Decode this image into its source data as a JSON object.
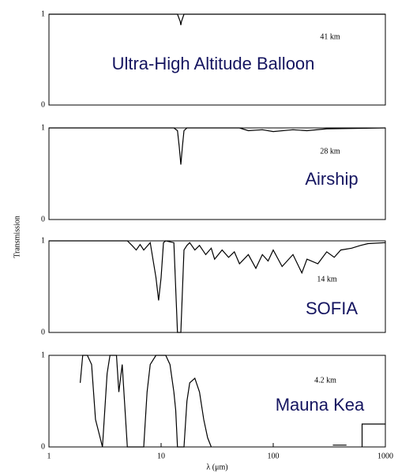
{
  "chart_data": [
    {
      "type": "line",
      "annotation": "41 km",
      "title": "Ultra-High Altitude Balloon",
      "y_label": "Transmission",
      "x": [
        1,
        14,
        14.8,
        15,
        15.2,
        16,
        1000
      ],
      "values": [
        1,
        1,
        0.92,
        0.88,
        0.92,
        1,
        1
      ],
      "color": "#000000",
      "xlim": [
        1,
        1000
      ],
      "ylim": [
        0,
        1
      ],
      "yticks": [
        0,
        1
      ],
      "log_x": true
    },
    {
      "type": "line",
      "annotation": "28 km",
      "title": "Airship",
      "x": [
        1,
        13,
        14,
        14.5,
        15,
        15.5,
        16,
        17,
        50,
        60,
        80,
        100,
        150,
        200,
        300,
        1000
      ],
      "values": [
        1,
        1,
        0.97,
        0.8,
        0.6,
        0.8,
        0.97,
        1,
        1,
        0.97,
        0.98,
        0.96,
        0.98,
        0.97,
        0.99,
        1
      ],
      "color": "#000000",
      "xlim": [
        1,
        1000
      ],
      "ylim": [
        0,
        1
      ],
      "yticks": [
        0,
        1
      ],
      "log_x": true
    },
    {
      "type": "line",
      "annotation": "14 km",
      "title": "SOFIA",
      "x": [
        1,
        5,
        5.5,
        6,
        6.5,
        7,
        8,
        9,
        9.5,
        10,
        10.5,
        11,
        13,
        14,
        15,
        16,
        17,
        18,
        20,
        22,
        25,
        28,
        30,
        35,
        40,
        45,
        50,
        60,
        70,
        80,
        90,
        100,
        120,
        150,
        180,
        200,
        250,
        300,
        350,
        400,
        500,
        600,
        700,
        1000
      ],
      "values": [
        1,
        1,
        0.95,
        0.9,
        0.96,
        0.9,
        0.98,
        0.6,
        0.35,
        0.6,
        0.98,
        1,
        0.98,
        0,
        0,
        0.9,
        0.95,
        0.98,
        0.9,
        0.95,
        0.85,
        0.92,
        0.8,
        0.9,
        0.82,
        0.88,
        0.75,
        0.85,
        0.7,
        0.85,
        0.78,
        0.9,
        0.72,
        0.85,
        0.65,
        0.8,
        0.75,
        0.88,
        0.82,
        0.9,
        0.92,
        0.95,
        0.97,
        0.98
      ],
      "color": "#000000",
      "xlim": [
        1,
        1000
      ],
      "ylim": [
        0,
        1
      ],
      "yticks": [
        0,
        1
      ],
      "log_x": true
    },
    {
      "type": "line",
      "annotation": "4.2 km",
      "title": "Mauna Kea",
      "x_label": "λ (μm)",
      "x": [
        1.9,
        2,
        2.2,
        2.4,
        2.6,
        3,
        3.3,
        3.5,
        4,
        4.2,
        4.5,
        5,
        7,
        7.5,
        8,
        9,
        10,
        11,
        12,
        13,
        13.5,
        14,
        16,
        17,
        18,
        20,
        22,
        24,
        26,
        28,
        30,
        340,
        450,
        500,
        620,
        620,
        1000
      ],
      "values": [
        0.7,
        1,
        1,
        0.9,
        0.3,
        0,
        0.8,
        1,
        1,
        0.6,
        0.9,
        0,
        0,
        0.6,
        0.9,
        1,
        1,
        1,
        0.9,
        0.6,
        0.4,
        0,
        0,
        0.5,
        0.7,
        0.75,
        0.6,
        0.3,
        0.1,
        0,
        null,
        0.02,
        0.02,
        null,
        0,
        0.25,
        0.25
      ],
      "color": "#000000",
      "xlim": [
        1,
        1000
      ],
      "ylim": [
        0,
        1
      ],
      "yticks": [
        0,
        1
      ],
      "xticks": [
        1,
        10,
        100,
        1000
      ],
      "log_x": true
    }
  ]
}
